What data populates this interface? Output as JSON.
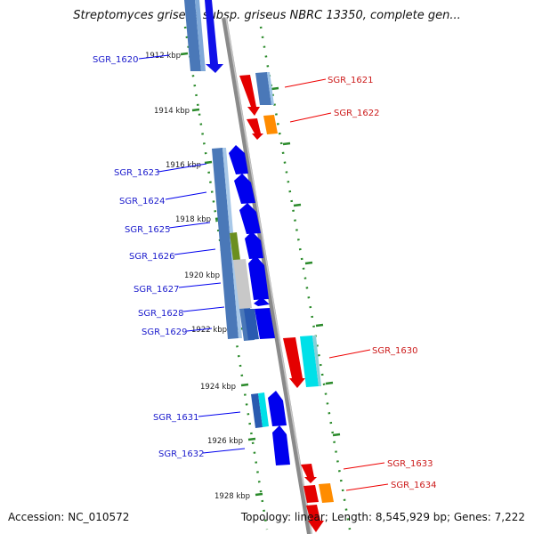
{
  "title": "Streptomyces griseus subsp. griseus NBRC 13350, complete gen...",
  "accession": "Accession: NC_010572",
  "topology": "Topology: linear; Length: 8,545,929 bp; Genes: 7,222",
  "colors": {
    "forward_strand": "#0000ee",
    "reverse_strand": "#ee0000",
    "ruler_ticks": "#2a8a2a",
    "axis": "#888888"
  },
  "scale_labels": [
    "1912 kbp",
    "1914 kbp",
    "1916 kbp",
    "1918 kbp",
    "1920 kbp",
    "1922 kbp",
    "1924 kbp",
    "1926 kbp",
    "1928 kbp"
  ],
  "left_genes": [
    "SGR_1620",
    "SGR_1623",
    "SGR_1624",
    "SGR_1625",
    "SGR_1626",
    "SGR_1627",
    "SGR_1628",
    "SGR_1629",
    "SGR_1631",
    "SGR_1632"
  ],
  "right_genes": [
    "SGR_1621",
    "SGR_1622",
    "SGR_1630",
    "SGR_1633",
    "SGR_1634"
  ]
}
